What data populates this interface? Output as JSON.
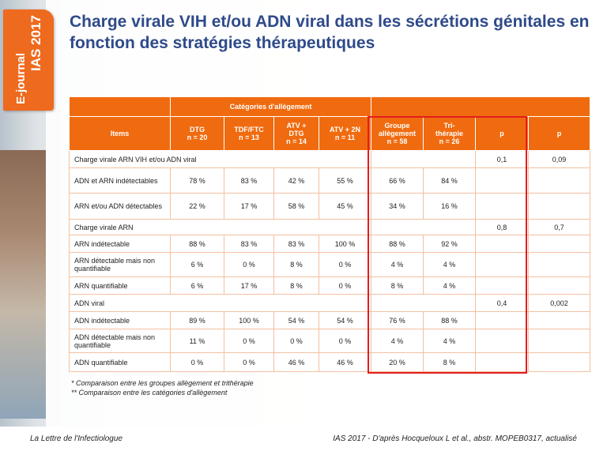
{
  "badge": {
    "line1": "E-journal",
    "line2": "IAS 2017"
  },
  "title": "Charge virale VIH et/ou ADN viral dans les sécrétions génitales en fonction des stratégies thérapeutiques",
  "table": {
    "group_header": "Catégories d'allègement",
    "headers": [
      "Items",
      "DTG\nn = 20",
      "TDF/FTC\nn = 13",
      "ATV +\nDTG\nn = 14",
      "ATV + 2N\nn = 11",
      "Groupe\nallègement\nn = 58",
      "Tri-\nthérapie\nn = 26",
      "p",
      "p"
    ],
    "rows": [
      {
        "section": true,
        "label": "Charge virale ARN VIH et/ou ADN viral",
        "p1": "0,1",
        "p2": "0,09"
      },
      {
        "label": "ADN et ARN indétectables",
        "values": [
          "78 %",
          "83 %",
          "42 %",
          "55 %",
          "66 %",
          "84 %"
        ]
      },
      {
        "label": "ARN et/ou ADN détectables",
        "values": [
          "22 %",
          "17 %",
          "58 %",
          "45 %",
          "34 %",
          "16 %"
        ]
      },
      {
        "section": true,
        "label": "Charge virale ARN",
        "p1": "0,8",
        "p2": "0,7"
      },
      {
        "label": "ARN indétectable",
        "values": [
          "88 %",
          "83 %",
          "83 %",
          "100 %",
          "88 %",
          "92 %"
        ]
      },
      {
        "label": "ARN détectable mais non quantifiable",
        "values": [
          "6 %",
          "0 %",
          "8 %",
          "0 %",
          "4 %",
          "4 %"
        ]
      },
      {
        "label": "ARN quantifiable",
        "values": [
          "6 %",
          "17 %",
          "8 %",
          "0 %",
          "8 %",
          "4 %"
        ]
      },
      {
        "section": true,
        "label": "ADN viral",
        "p1": "0,4",
        "p2": "0,002"
      },
      {
        "label": "ADN indétectable",
        "values": [
          "89 %",
          "100 %",
          "54 %",
          "54 %",
          "76 %",
          "88 %"
        ]
      },
      {
        "label": "ADN détectable mais non quantifiable",
        "values": [
          "11 %",
          "0 %",
          "0 %",
          "0 %",
          "4 %",
          "4 %"
        ]
      },
      {
        "label": "ADN quantifiable",
        "values": [
          "0 %",
          "0 %",
          "46 %",
          "46 %",
          "20 %",
          "8 %"
        ]
      }
    ]
  },
  "notes": [
    "* Comparaison entre les groupes allègement et trithérapie",
    "** Comparaison entre les catégories d'allègement"
  ],
  "footer": {
    "left": "La Lettre de l'Infectiologue",
    "right": "IAS 2017 - D'après Hocqueloux L et al., abstr. MOPEB0317, actualisé"
  },
  "colors": {
    "header": "#f06b0f",
    "section": "#fbc9a5",
    "highlight": "#e31d1d",
    "title": "#2e4a8a"
  }
}
